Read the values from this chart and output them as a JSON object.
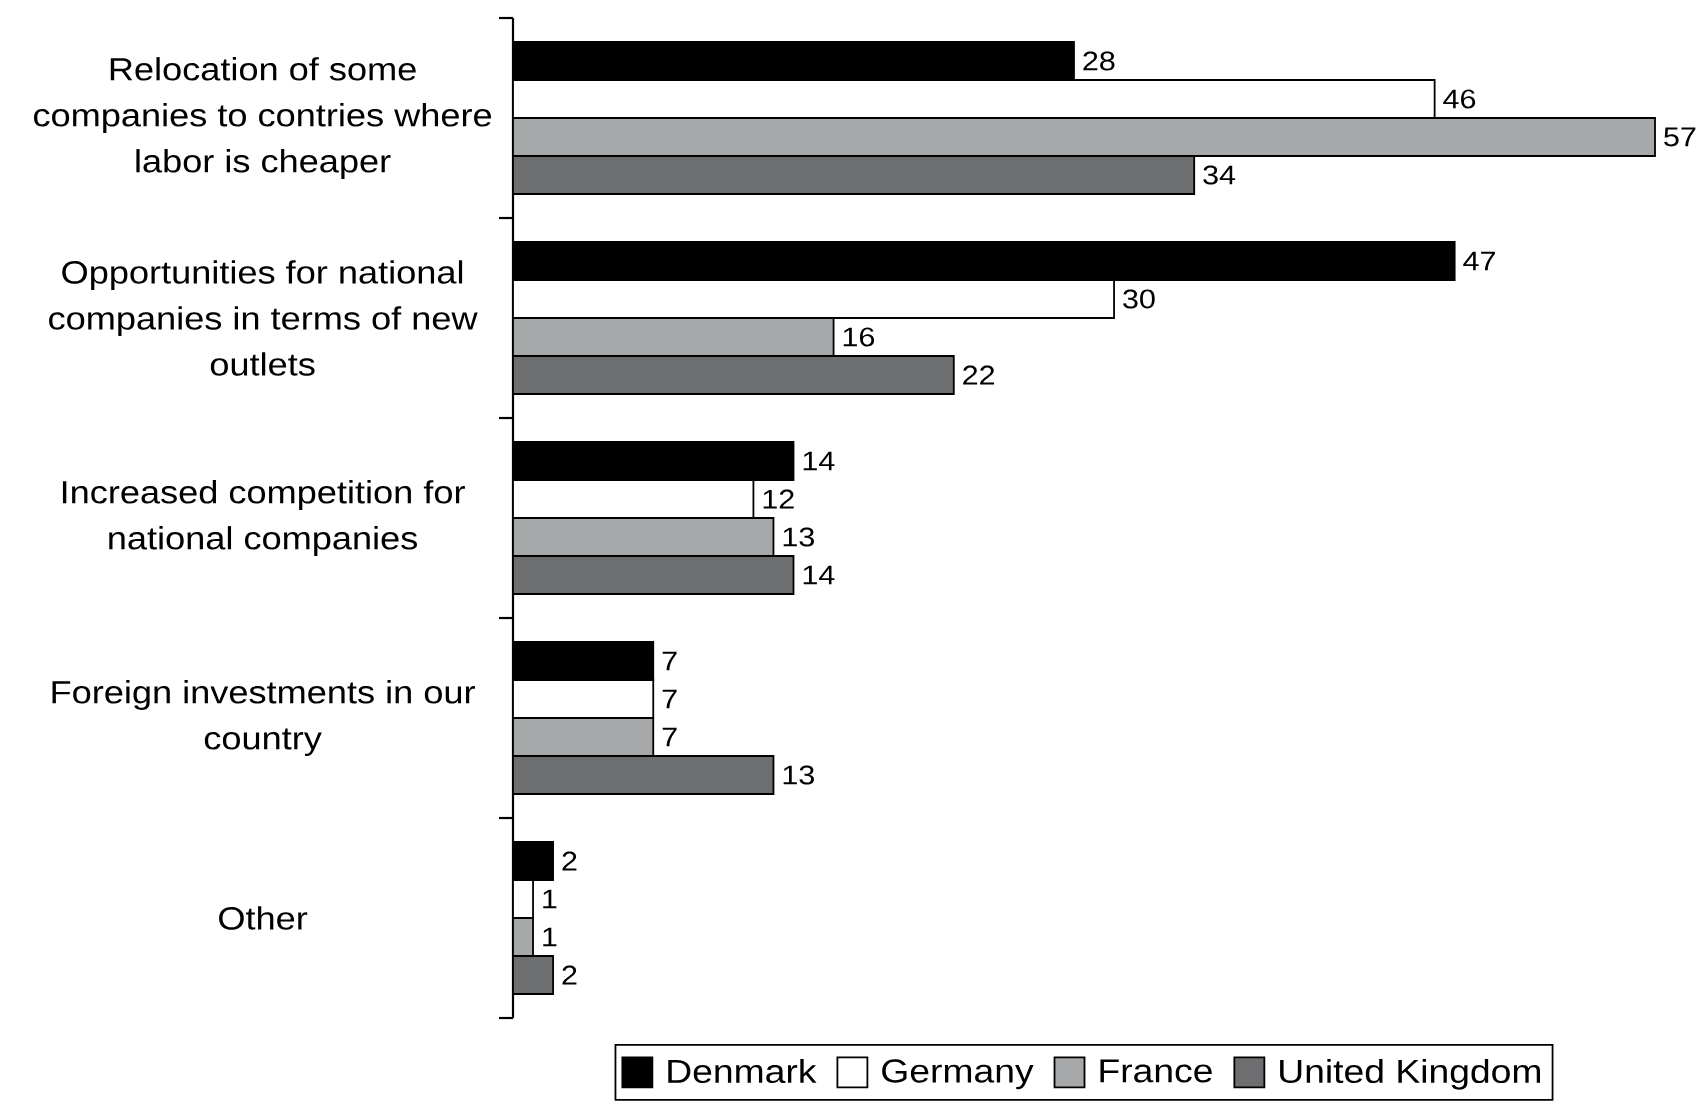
{
  "chart_data": {
    "type": "bar",
    "orientation": "horizontal",
    "categories": [
      "Relocation of some companies to contries where labor is cheaper",
      "Opportunities for national companies in terms of new outlets",
      "Increased competition for national companies",
      "Foreign investments in our country",
      "Other"
    ],
    "series": [
      {
        "name": "Denmark",
        "color": "#000000",
        "values": [
          28,
          47,
          14,
          7,
          2
        ]
      },
      {
        "name": "Germany",
        "color": "#ffffff",
        "values": [
          46,
          30,
          12,
          7,
          1
        ]
      },
      {
        "name": "France",
        "color": "#a7a8aa",
        "values": [
          57,
          16,
          13,
          7,
          1
        ]
      },
      {
        "name": "United Kingdom",
        "color": "#6d6e70",
        "values": [
          34,
          22,
          14,
          13,
          2
        ]
      }
    ],
    "data_labels": true,
    "legend": "bottom",
    "tick_labels": "y"
  }
}
